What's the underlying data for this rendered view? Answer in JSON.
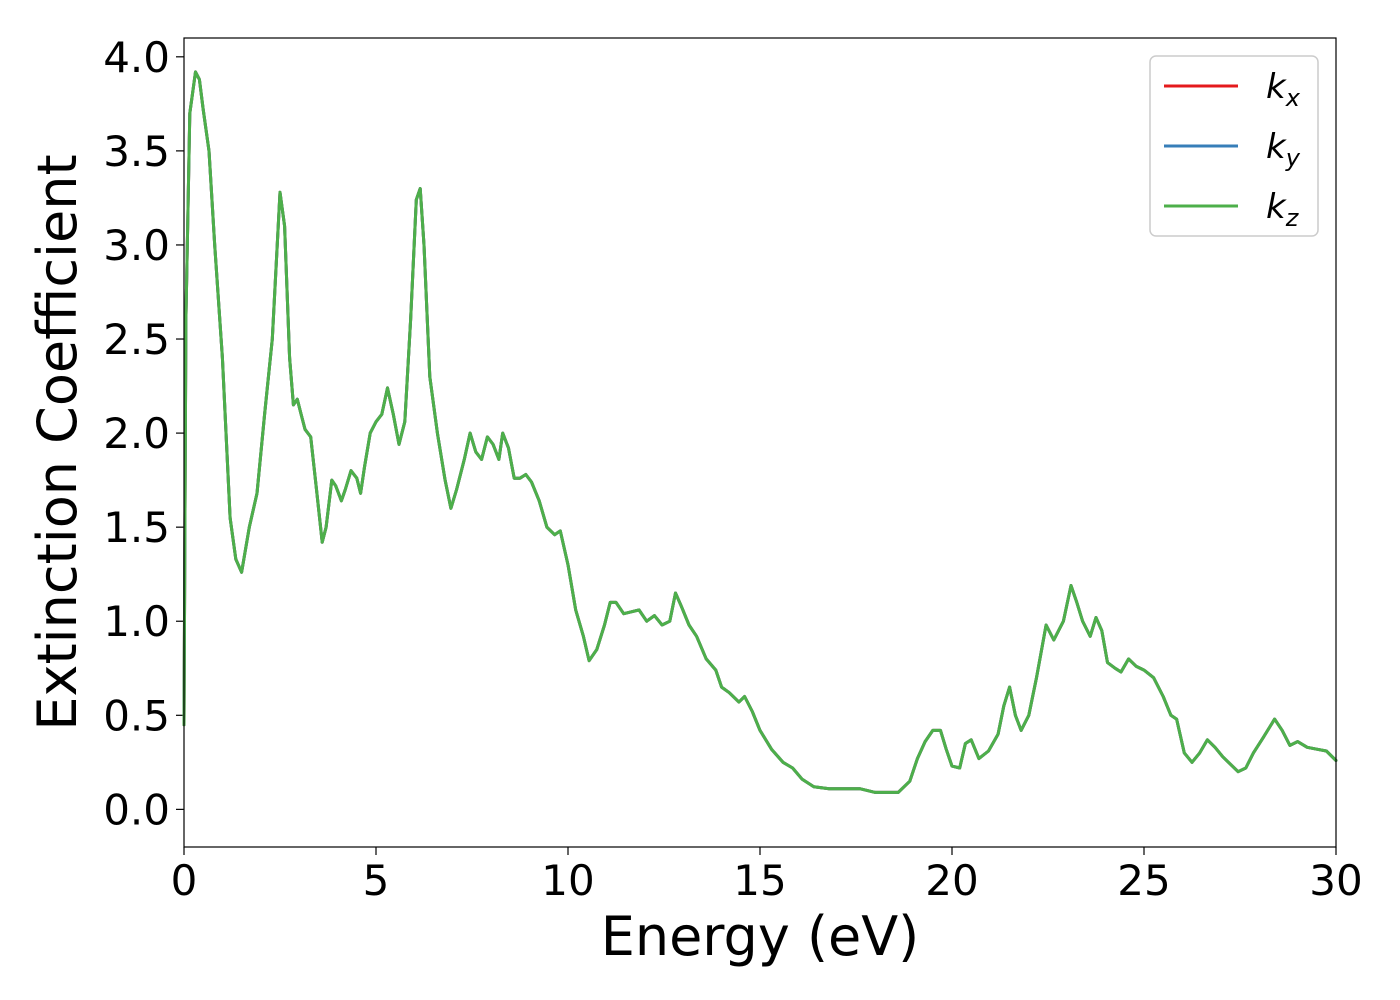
{
  "chart_data": {
    "type": "line",
    "title": "",
    "xlabel": "Energy (eV)",
    "ylabel": "Extinction Coefficient",
    "xlim": [
      0,
      30
    ],
    "ylim": [
      -0.2,
      4.1
    ],
    "xticks": [
      0,
      5,
      10,
      15,
      20,
      25,
      30
    ],
    "xtick_labels": [
      "0",
      "5",
      "10",
      "15",
      "20",
      "25",
      "30"
    ],
    "yticks": [
      0.0,
      0.5,
      1.0,
      1.5,
      2.0,
      2.5,
      3.0,
      3.5,
      4.0
    ],
    "ytick_labels": [
      "0.0",
      "0.5",
      "1.0",
      "1.5",
      "2.0",
      "2.5",
      "3.0",
      "3.5",
      "4.0"
    ],
    "grid": false,
    "legend_position": "top-right",
    "series": [
      {
        "name": "k",
        "sub": "x",
        "color": "#e41a1c",
        "x": [
          0,
          0.05,
          0.15,
          0.3,
          0.4,
          0.5,
          0.65,
          0.8,
          1.0,
          1.2,
          1.35,
          1.5,
          1.7,
          1.9,
          2.1,
          2.3,
          2.5,
          2.62,
          2.75,
          2.85,
          2.95,
          3.05,
          3.15,
          3.3,
          3.45,
          3.6,
          3.7,
          3.85,
          3.95,
          4.1,
          4.2,
          4.35,
          4.5,
          4.6,
          4.7,
          4.85,
          5.0,
          5.15,
          5.3,
          5.45,
          5.6,
          5.75,
          5.9,
          6.05,
          6.15,
          6.25,
          6.4,
          6.6,
          6.8,
          6.95,
          7.1,
          7.3,
          7.45,
          7.6,
          7.75,
          7.9,
          8.05,
          8.2,
          8.3,
          8.45,
          8.6,
          8.75,
          8.9,
          9.05,
          9.25,
          9.45,
          9.65,
          9.8,
          10.0,
          10.2,
          10.4,
          10.55,
          10.75,
          10.95,
          11.1,
          11.25,
          11.45,
          11.65,
          11.85,
          12.05,
          12.25,
          12.45,
          12.65,
          12.8,
          12.95,
          13.15,
          13.35,
          13.6,
          13.85,
          14.0,
          14.2,
          14.45,
          14.6,
          14.8,
          15.0,
          15.3,
          15.6,
          15.85,
          16.1,
          16.4,
          16.8,
          17.2,
          17.6,
          18.0,
          18.3,
          18.6,
          18.9,
          19.1,
          19.3,
          19.5,
          19.7,
          19.85,
          20.0,
          20.2,
          20.35,
          20.5,
          20.7,
          20.95,
          21.2,
          21.35,
          21.5,
          21.65,
          21.8,
          22.0,
          22.2,
          22.45,
          22.65,
          22.9,
          23.1,
          23.25,
          23.4,
          23.6,
          23.75,
          23.9,
          24.05,
          24.25,
          24.4,
          24.6,
          24.8,
          25.0,
          25.25,
          25.5,
          25.7,
          25.85,
          26.05,
          26.25,
          26.45,
          26.65,
          26.85,
          27.05,
          27.25,
          27.45,
          27.65,
          27.85,
          28.1,
          28.4,
          28.6,
          28.8,
          29.0,
          29.25,
          29.5,
          29.75,
          30.0
        ],
        "y": [
          0.45,
          2.6,
          3.7,
          3.92,
          3.88,
          3.72,
          3.5,
          3.0,
          2.4,
          1.55,
          1.33,
          1.26,
          1.5,
          1.68,
          2.1,
          2.5,
          3.28,
          3.1,
          2.4,
          2.15,
          2.18,
          2.1,
          2.02,
          1.98,
          1.7,
          1.42,
          1.5,
          1.75,
          1.72,
          1.64,
          1.7,
          1.8,
          1.76,
          1.68,
          1.82,
          2.0,
          2.06,
          2.1,
          2.24,
          2.1,
          1.94,
          2.06,
          2.6,
          3.24,
          3.3,
          3.0,
          2.3,
          2.0,
          1.75,
          1.6,
          1.7,
          1.86,
          2.0,
          1.9,
          1.86,
          1.98,
          1.94,
          1.86,
          2.0,
          1.92,
          1.76,
          1.76,
          1.78,
          1.74,
          1.64,
          1.5,
          1.46,
          1.48,
          1.3,
          1.06,
          0.92,
          0.79,
          0.85,
          0.98,
          1.1,
          1.1,
          1.04,
          1.05,
          1.06,
          1.0,
          1.03,
          0.98,
          1.0,
          1.15,
          1.08,
          0.98,
          0.92,
          0.8,
          0.74,
          0.65,
          0.62,
          0.57,
          0.6,
          0.52,
          0.42,
          0.32,
          0.25,
          0.22,
          0.16,
          0.12,
          0.11,
          0.11,
          0.11,
          0.09,
          0.09,
          0.09,
          0.15,
          0.27,
          0.36,
          0.42,
          0.42,
          0.32,
          0.23,
          0.22,
          0.35,
          0.37,
          0.27,
          0.31,
          0.4,
          0.55,
          0.65,
          0.5,
          0.42,
          0.5,
          0.7,
          0.98,
          0.9,
          1.0,
          1.19,
          1.1,
          1.0,
          0.92,
          1.02,
          0.95,
          0.78,
          0.75,
          0.73,
          0.8,
          0.76,
          0.74,
          0.7,
          0.6,
          0.5,
          0.48,
          0.3,
          0.25,
          0.3,
          0.37,
          0.33,
          0.28,
          0.24,
          0.2,
          0.22,
          0.3,
          0.38,
          0.48,
          0.42,
          0.34,
          0.36,
          0.33,
          0.32,
          0.31,
          0.26
        ]
      },
      {
        "name": "k",
        "sub": "y",
        "color": "#377eb8",
        "x": [
          0,
          0.05,
          0.15,
          0.3,
          0.4,
          0.5,
          0.65,
          0.8,
          1.0,
          1.2,
          1.35,
          1.5,
          1.7,
          1.9,
          2.1,
          2.3,
          2.5,
          2.62,
          2.75,
          2.85,
          2.95,
          3.05,
          3.15,
          3.3,
          3.45,
          3.6,
          3.7,
          3.85,
          3.95,
          4.1,
          4.2,
          4.35,
          4.5,
          4.6,
          4.7,
          4.85,
          5.0,
          5.15,
          5.3,
          5.45,
          5.6,
          5.75,
          5.9,
          6.05,
          6.15,
          6.25,
          6.4,
          6.6,
          6.8,
          6.95,
          7.1,
          7.3,
          7.45,
          7.6,
          7.75,
          7.9,
          8.05,
          8.2,
          8.3,
          8.45,
          8.6,
          8.75,
          8.9,
          9.05,
          9.25,
          9.45,
          9.65,
          9.8,
          10.0,
          10.2,
          10.4,
          10.55,
          10.75,
          10.95,
          11.1,
          11.25,
          11.45,
          11.65,
          11.85,
          12.05,
          12.25,
          12.45,
          12.65,
          12.8,
          12.95,
          13.15,
          13.35,
          13.6,
          13.85,
          14.0,
          14.2,
          14.45,
          14.6,
          14.8,
          15.0,
          15.3,
          15.6,
          15.85,
          16.1,
          16.4,
          16.8,
          17.2,
          17.6,
          18.0,
          18.3,
          18.6,
          18.9,
          19.1,
          19.3,
          19.5,
          19.7,
          19.85,
          20.0,
          20.2,
          20.35,
          20.5,
          20.7,
          20.95,
          21.2,
          21.35,
          21.5,
          21.65,
          21.8,
          22.0,
          22.2,
          22.45,
          22.65,
          22.9,
          23.1,
          23.25,
          23.4,
          23.6,
          23.75,
          23.9,
          24.05,
          24.25,
          24.4,
          24.6,
          24.8,
          25.0,
          25.25,
          25.5,
          25.7,
          25.85,
          26.05,
          26.25,
          26.45,
          26.65,
          26.85,
          27.05,
          27.25,
          27.45,
          27.65,
          27.85,
          28.1,
          28.4,
          28.6,
          28.8,
          29.0,
          29.25,
          29.5,
          29.75,
          30.0
        ],
        "y": [
          0.45,
          2.6,
          3.7,
          3.92,
          3.88,
          3.72,
          3.5,
          3.0,
          2.4,
          1.55,
          1.33,
          1.26,
          1.5,
          1.68,
          2.1,
          2.5,
          3.28,
          3.1,
          2.4,
          2.15,
          2.18,
          2.1,
          2.02,
          1.98,
          1.7,
          1.42,
          1.5,
          1.75,
          1.72,
          1.64,
          1.7,
          1.8,
          1.76,
          1.68,
          1.82,
          2.0,
          2.06,
          2.1,
          2.24,
          2.1,
          1.94,
          2.06,
          2.6,
          3.24,
          3.3,
          3.0,
          2.3,
          2.0,
          1.75,
          1.6,
          1.7,
          1.86,
          2.0,
          1.9,
          1.86,
          1.98,
          1.94,
          1.86,
          2.0,
          1.92,
          1.76,
          1.76,
          1.78,
          1.74,
          1.64,
          1.5,
          1.46,
          1.48,
          1.3,
          1.06,
          0.92,
          0.79,
          0.85,
          0.98,
          1.1,
          1.1,
          1.04,
          1.05,
          1.06,
          1.0,
          1.03,
          0.98,
          1.0,
          1.15,
          1.08,
          0.98,
          0.92,
          0.8,
          0.74,
          0.65,
          0.62,
          0.57,
          0.6,
          0.52,
          0.42,
          0.32,
          0.25,
          0.22,
          0.16,
          0.12,
          0.11,
          0.11,
          0.11,
          0.09,
          0.09,
          0.09,
          0.15,
          0.27,
          0.36,
          0.42,
          0.42,
          0.32,
          0.23,
          0.22,
          0.35,
          0.37,
          0.27,
          0.31,
          0.4,
          0.55,
          0.65,
          0.5,
          0.42,
          0.5,
          0.7,
          0.98,
          0.9,
          1.0,
          1.19,
          1.1,
          1.0,
          0.92,
          1.02,
          0.95,
          0.78,
          0.75,
          0.73,
          0.8,
          0.76,
          0.74,
          0.7,
          0.6,
          0.5,
          0.48,
          0.3,
          0.25,
          0.3,
          0.37,
          0.33,
          0.28,
          0.24,
          0.2,
          0.22,
          0.3,
          0.38,
          0.48,
          0.42,
          0.34,
          0.36,
          0.33,
          0.32,
          0.31,
          0.26
        ]
      },
      {
        "name": "k",
        "sub": "z",
        "color": "#4daf4a",
        "x": [
          0,
          0.05,
          0.15,
          0.3,
          0.4,
          0.5,
          0.65,
          0.8,
          1.0,
          1.2,
          1.35,
          1.5,
          1.7,
          1.9,
          2.1,
          2.3,
          2.5,
          2.62,
          2.75,
          2.85,
          2.95,
          3.05,
          3.15,
          3.3,
          3.45,
          3.6,
          3.7,
          3.85,
          3.95,
          4.1,
          4.2,
          4.35,
          4.5,
          4.6,
          4.7,
          4.85,
          5.0,
          5.15,
          5.3,
          5.45,
          5.6,
          5.75,
          5.9,
          6.05,
          6.15,
          6.25,
          6.4,
          6.6,
          6.8,
          6.95,
          7.1,
          7.3,
          7.45,
          7.6,
          7.75,
          7.9,
          8.05,
          8.2,
          8.3,
          8.45,
          8.6,
          8.75,
          8.9,
          9.05,
          9.25,
          9.45,
          9.65,
          9.8,
          10.0,
          10.2,
          10.4,
          10.55,
          10.75,
          10.95,
          11.1,
          11.25,
          11.45,
          11.65,
          11.85,
          12.05,
          12.25,
          12.45,
          12.65,
          12.8,
          12.95,
          13.15,
          13.35,
          13.6,
          13.85,
          14.0,
          14.2,
          14.45,
          14.6,
          14.8,
          15.0,
          15.3,
          15.6,
          15.85,
          16.1,
          16.4,
          16.8,
          17.2,
          17.6,
          18.0,
          18.3,
          18.6,
          18.9,
          19.1,
          19.3,
          19.5,
          19.7,
          19.85,
          20.0,
          20.2,
          20.35,
          20.5,
          20.7,
          20.95,
          21.2,
          21.35,
          21.5,
          21.65,
          21.8,
          22.0,
          22.2,
          22.45,
          22.65,
          22.9,
          23.1,
          23.25,
          23.4,
          23.6,
          23.75,
          23.9,
          24.05,
          24.25,
          24.4,
          24.6,
          24.8,
          25.0,
          25.25,
          25.5,
          25.7,
          25.85,
          26.05,
          26.25,
          26.45,
          26.65,
          26.85,
          27.05,
          27.25,
          27.45,
          27.65,
          27.85,
          28.1,
          28.4,
          28.6,
          28.8,
          29.0,
          29.25,
          29.5,
          29.75,
          30.0
        ],
        "y": [
          0.45,
          2.6,
          3.7,
          3.92,
          3.88,
          3.72,
          3.5,
          3.0,
          2.4,
          1.55,
          1.33,
          1.26,
          1.5,
          1.68,
          2.1,
          2.5,
          3.28,
          3.1,
          2.4,
          2.15,
          2.18,
          2.1,
          2.02,
          1.98,
          1.7,
          1.42,
          1.5,
          1.75,
          1.72,
          1.64,
          1.7,
          1.8,
          1.76,
          1.68,
          1.82,
          2.0,
          2.06,
          2.1,
          2.24,
          2.1,
          1.94,
          2.06,
          2.6,
          3.24,
          3.3,
          3.0,
          2.3,
          2.0,
          1.75,
          1.6,
          1.7,
          1.86,
          2.0,
          1.9,
          1.86,
          1.98,
          1.94,
          1.86,
          2.0,
          1.92,
          1.76,
          1.76,
          1.78,
          1.74,
          1.64,
          1.5,
          1.46,
          1.48,
          1.3,
          1.06,
          0.92,
          0.79,
          0.85,
          0.98,
          1.1,
          1.1,
          1.04,
          1.05,
          1.06,
          1.0,
          1.03,
          0.98,
          1.0,
          1.15,
          1.08,
          0.98,
          0.92,
          0.8,
          0.74,
          0.65,
          0.62,
          0.57,
          0.6,
          0.52,
          0.42,
          0.32,
          0.25,
          0.22,
          0.16,
          0.12,
          0.11,
          0.11,
          0.11,
          0.09,
          0.09,
          0.09,
          0.15,
          0.27,
          0.36,
          0.42,
          0.42,
          0.32,
          0.23,
          0.22,
          0.35,
          0.37,
          0.27,
          0.31,
          0.4,
          0.55,
          0.65,
          0.5,
          0.42,
          0.5,
          0.7,
          0.98,
          0.9,
          1.0,
          1.19,
          1.1,
          1.0,
          0.92,
          1.02,
          0.95,
          0.78,
          0.75,
          0.73,
          0.8,
          0.76,
          0.74,
          0.7,
          0.6,
          0.5,
          0.48,
          0.3,
          0.25,
          0.3,
          0.37,
          0.33,
          0.28,
          0.24,
          0.2,
          0.22,
          0.3,
          0.38,
          0.48,
          0.42,
          0.34,
          0.36,
          0.33,
          0.32,
          0.31,
          0.26
        ]
      }
    ]
  }
}
